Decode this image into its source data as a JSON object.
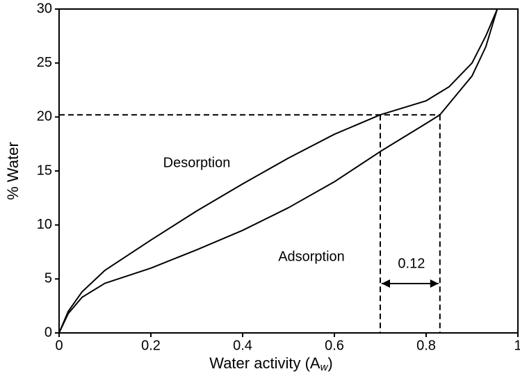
{
  "chart_data": {
    "type": "line",
    "xlabel": [
      "Water activity (A",
      "w",
      ")"
    ],
    "ylabel": "% Water",
    "xlim": [
      0,
      1
    ],
    "ylim": [
      0,
      30
    ],
    "xticks": [
      0,
      0.2,
      0.4,
      0.6,
      0.8,
      1
    ],
    "yticks": [
      0,
      5,
      10,
      15,
      20,
      25,
      30
    ],
    "series": [
      {
        "name": "Desorption",
        "color": "#000000",
        "x": [
          0,
          0.02,
          0.05,
          0.1,
          0.2,
          0.3,
          0.4,
          0.5,
          0.6,
          0.7,
          0.8,
          0.85,
          0.9,
          0.93,
          0.955
        ],
        "values": [
          0,
          2.0,
          3.8,
          5.8,
          8.6,
          11.3,
          13.8,
          16.2,
          18.4,
          20.2,
          21.5,
          22.8,
          25,
          27.5,
          30
        ]
      },
      {
        "name": "Adsorption",
        "color": "#000000",
        "x": [
          0,
          0.02,
          0.05,
          0.1,
          0.2,
          0.3,
          0.4,
          0.5,
          0.6,
          0.7,
          0.8,
          0.83,
          0.9,
          0.93,
          0.955
        ],
        "values": [
          0,
          1.8,
          3.3,
          4.6,
          6.0,
          7.7,
          9.5,
          11.6,
          14.0,
          16.8,
          19.4,
          20.2,
          23.8,
          26.5,
          30
        ]
      }
    ],
    "reference": {
      "y": 20.2,
      "x": [
        0.7,
        0.83
      ],
      "label": "0.12"
    }
  }
}
